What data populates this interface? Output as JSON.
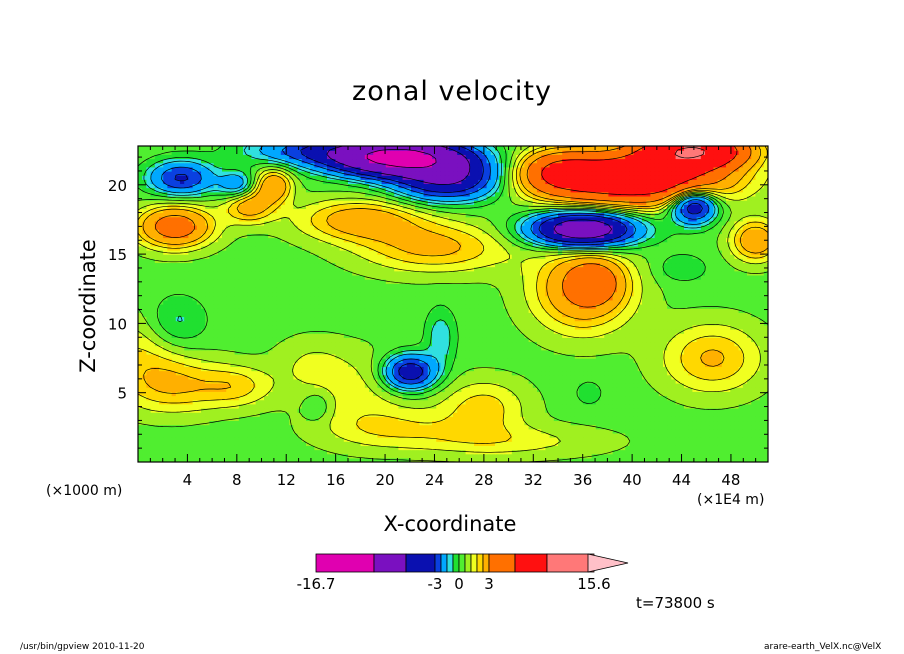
{
  "chart_data": {
    "type": "heatmap",
    "title": "zonal velocity",
    "xlabel": "X-coordinate",
    "ylabel": "Z-coordinate",
    "x_unit_label": "(×1000 m)",
    "x_scale_label": "(×1E4 m)",
    "xlim": [
      0,
      51
    ],
    "ylim": [
      0,
      22.8
    ],
    "x_ticks": [
      4,
      8,
      12,
      16,
      20,
      24,
      28,
      32,
      36,
      40,
      44,
      48
    ],
    "y_ticks": [
      5,
      10,
      15,
      20
    ],
    "colorbar": {
      "levels": [
        -16.7,
        -10,
        -5,
        -3,
        -2,
        -1,
        -0.5,
        0,
        0.5,
        1,
        1.5,
        2,
        3,
        5,
        10,
        15.6
      ],
      "colors": [
        "#e000b0",
        "#7a10c0",
        "#0a10b0",
        "#0a40e0",
        "#00a8ff",
        "#30e0e0",
        "#20e030",
        "#50ee30",
        "#a0f020",
        "#f0ff20",
        "#ffd800",
        "#ffb000",
        "#ff7000",
        "#ff1010",
        "#ff7878",
        "#ffc0c8"
      ],
      "tick_labels": [
        "-16.7",
        "-3",
        "0",
        "3",
        "15.6"
      ],
      "tick_values": [
        -16.7,
        -3,
        0,
        3,
        15.6
      ]
    },
    "features": [
      {
        "x": 0,
        "z": 8,
        "sx": 4,
        "sz": 3,
        "u": 1.2
      },
      {
        "x": 3,
        "z": 5.5,
        "sx": 4,
        "sz": 2,
        "u": 1.5
      },
      {
        "x": 8,
        "z": 5.5,
        "sx": 3,
        "sz": 1.5,
        "u": 1.3
      },
      {
        "x": 18,
        "z": 5,
        "sx": 4,
        "sz": 3,
        "u": 0.8
      },
      {
        "x": 28,
        "z": 4,
        "sx": 3.5,
        "sz": 2,
        "u": 1.4
      },
      {
        "x": 21,
        "z": 2.5,
        "sx": 6,
        "sz": 1.5,
        "u": 1.0
      },
      {
        "x": 30,
        "z": 1.5,
        "sx": 8,
        "sz": 1.2,
        "u": 0.9
      },
      {
        "x": 14,
        "z": 7,
        "sx": 3,
        "sz": 2,
        "u": 0.7
      },
      {
        "x": 24,
        "z": 15.5,
        "sx": 6,
        "sz": 1.8,
        "u": 1.9
      },
      {
        "x": 18,
        "z": 17.5,
        "sx": 5,
        "sz": 1.5,
        "u": 2.2
      },
      {
        "x": 36,
        "z": 12.5,
        "sx": 4,
        "sz": 3,
        "u": 2.8
      },
      {
        "x": 37,
        "z": 13,
        "sx": 2,
        "sz": 1.5,
        "u": 2.0
      },
      {
        "x": 46.5,
        "z": 7.5,
        "sx": 4,
        "sz": 2.5,
        "u": 1.8
      },
      {
        "x": 3,
        "z": 17,
        "sx": 3,
        "sz": 1.5,
        "u": 3.6
      },
      {
        "x": 9,
        "z": 18.5,
        "sx": 2,
        "sz": 1.2,
        "u": 2.2
      },
      {
        "x": 11,
        "z": 20,
        "sx": 1.5,
        "sz": 1.2,
        "u": 2.5
      },
      {
        "x": 40,
        "z": 20.5,
        "sx": 7,
        "sz": 1.8,
        "u": 7.5
      },
      {
        "x": 34,
        "z": 21,
        "sx": 3,
        "sz": 1.5,
        "u": 3.0
      },
      {
        "x": 45,
        "z": 22.5,
        "sx": 4,
        "sz": 1.2,
        "u": 9.0
      },
      {
        "x": 50,
        "z": 16,
        "sx": 2,
        "sz": 1.5,
        "u": 2.5
      },
      {
        "x": 21,
        "z": 22,
        "sx": 5,
        "sz": 1.2,
        "u": -12.0
      },
      {
        "x": 25,
        "z": 20.5,
        "sx": 4,
        "sz": 1.5,
        "u": -5.5
      },
      {
        "x": 3.5,
        "z": 20.5,
        "sx": 2.5,
        "sz": 1.2,
        "u": -3.5
      },
      {
        "x": 36,
        "z": 16.8,
        "sx": 4,
        "sz": 1.2,
        "u": -8.0
      },
      {
        "x": 45,
        "z": 18.5,
        "sx": 1.8,
        "sz": 1.2,
        "u": -5.0
      },
      {
        "x": 22,
        "z": 6.5,
        "sx": 2,
        "sz": 1.2,
        "u": -4.5
      },
      {
        "x": 3,
        "z": 10,
        "sx": 2.5,
        "sz": 2,
        "u": -1.2
      },
      {
        "x": 24.5,
        "z": 9,
        "sx": 1.2,
        "sz": 2,
        "u": -1.2
      },
      {
        "x": 8,
        "z": 20,
        "sx": 1.5,
        "sz": 1,
        "u": -2.0
      },
      {
        "x": 14,
        "z": 22.5,
        "sx": 5,
        "sz": 1,
        "u": -2.5
      },
      {
        "x": 44,
        "z": 14,
        "sx": 2,
        "sz": 1,
        "u": -0.8
      },
      {
        "x": 36.5,
        "z": 5,
        "sx": 1,
        "sz": 0.8,
        "u": -0.8
      },
      {
        "x": 14.5,
        "z": 4,
        "sx": 1,
        "sz": 1,
        "u": -0.8
      }
    ]
  },
  "annotations": {
    "timestamp": "t=73800 s",
    "footer_left": "/usr/bin/gpview   2010-11-20",
    "footer_right": "arare-earth_VelX.nc@VelX"
  }
}
